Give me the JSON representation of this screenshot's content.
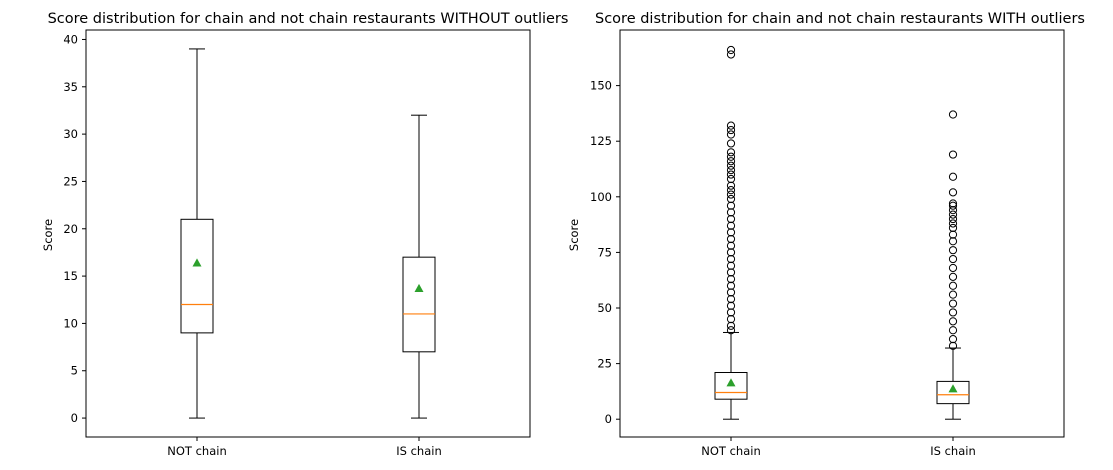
{
  "chart_data": [
    {
      "type": "box",
      "title": "Score distribution for chain and not chain restaurants WITHOUT outliers",
      "xlabel": "",
      "ylabel": "Score",
      "categories": [
        "NOT chain",
        "IS chain"
      ],
      "ylim": [
        -2,
        41
      ],
      "yticks": [
        0,
        5,
        10,
        15,
        20,
        25,
        30,
        35,
        40
      ],
      "show_outliers": false,
      "boxes": [
        {
          "whislo": 0,
          "q1": 9,
          "median": 12,
          "q3": 21,
          "whishi": 39,
          "mean": 16.4,
          "outliers": []
        },
        {
          "whislo": 0,
          "q1": 7,
          "median": 11,
          "q3": 17,
          "whishi": 32,
          "mean": 13.7,
          "outliers": []
        }
      ],
      "colors": {
        "median": "#ff7f0e",
        "mean": "#2ca02c"
      }
    },
    {
      "type": "box",
      "title": "Score distribution for chain and not chain restaurants WITH outliers",
      "xlabel": "",
      "ylabel": "Score",
      "categories": [
        "NOT chain",
        "IS chain"
      ],
      "ylim": [
        -8,
        175
      ],
      "yticks": [
        0,
        25,
        50,
        75,
        100,
        125,
        150
      ],
      "show_outliers": true,
      "boxes": [
        {
          "whislo": 0,
          "q1": 9,
          "median": 12,
          "q3": 21,
          "whishi": 39,
          "mean": 16.4,
          "outliers": [
            40,
            42,
            45,
            48,
            51,
            54,
            57,
            60,
            63,
            66,
            69,
            72,
            75,
            78,
            81,
            84,
            87,
            90,
            93,
            96,
            99,
            101,
            103,
            105,
            108,
            110,
            112,
            114,
            116,
            118,
            120,
            124,
            128,
            130,
            132,
            164,
            166
          ]
        },
        {
          "whislo": 0,
          "q1": 7,
          "median": 11,
          "q3": 17,
          "whishi": 32,
          "mean": 13.7,
          "outliers": [
            33,
            36,
            40,
            44,
            48,
            52,
            56,
            60,
            64,
            68,
            72,
            76,
            80,
            83,
            86,
            88,
            90,
            92,
            94,
            96,
            97,
            102,
            109,
            119,
            137
          ]
        }
      ],
      "colors": {
        "median": "#ff7f0e",
        "mean": "#2ca02c"
      }
    }
  ]
}
